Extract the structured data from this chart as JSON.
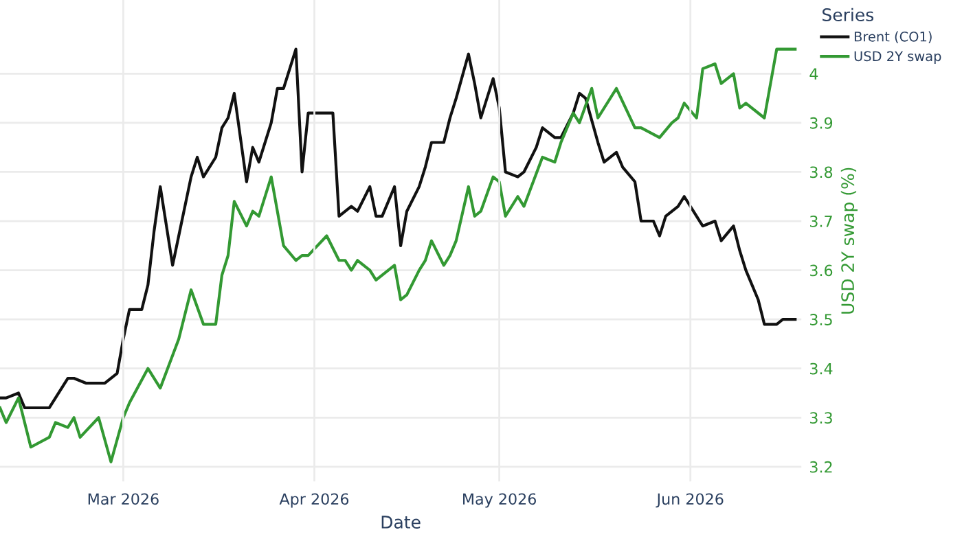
{
  "chart_data": {
    "type": "line",
    "xlabel": "Date",
    "y2label": "USD 2Y swap (%)",
    "legend_title": "Series",
    "legend": "top right",
    "grid": true,
    "line_style": "solid",
    "marker": "none",
    "xlim": [
      "2026-02-09",
      "2026-06-19"
    ],
    "xticks": [
      {
        "value": "2026-03-01",
        "label": "Mar 2026"
      },
      {
        "value": "2026-04-01",
        "label": "Apr 2026"
      },
      {
        "value": "2026-05-01",
        "label": "May 2026"
      },
      {
        "value": "2026-06-01",
        "label": "Jun 2026"
      }
    ],
    "y2lim": [
      3.17,
      4.15
    ],
    "y2ticks": [
      3.2,
      3.3,
      3.4,
      3.5,
      3.6,
      3.7,
      3.8,
      3.9,
      4
    ],
    "series": [
      {
        "name": "Brent (CO1)",
        "color": "#111111",
        "axis": "y2",
        "x": [
          "2026-02-09",
          "2026-02-10",
          "2026-02-12",
          "2026-02-13",
          "2026-02-15",
          "2026-02-17",
          "2026-02-19",
          "2026-02-20",
          "2026-02-21",
          "2026-02-23",
          "2026-02-26",
          "2026-02-28",
          "2026-03-01",
          "2026-03-02",
          "2026-03-04",
          "2026-03-05",
          "2026-03-06",
          "2026-03-07",
          "2026-03-09",
          "2026-03-10",
          "2026-03-12",
          "2026-03-13",
          "2026-03-14",
          "2026-03-16",
          "2026-03-17",
          "2026-03-18",
          "2026-03-19",
          "2026-03-21",
          "2026-03-22",
          "2026-03-23",
          "2026-03-25",
          "2026-03-26",
          "2026-03-27",
          "2026-03-29",
          "2026-03-30",
          "2026-03-31",
          "2026-04-01",
          "2026-04-03",
          "2026-04-04",
          "2026-04-05",
          "2026-04-07",
          "2026-04-08",
          "2026-04-10",
          "2026-04-11",
          "2026-04-12",
          "2026-04-14",
          "2026-04-15",
          "2026-04-16",
          "2026-04-18",
          "2026-04-19",
          "2026-04-20",
          "2026-04-22",
          "2026-04-23",
          "2026-04-24",
          "2026-04-26",
          "2026-04-27",
          "2026-04-28",
          "2026-04-30",
          "2026-05-01",
          "2026-05-02",
          "2026-05-04",
          "2026-05-05",
          "2026-05-07",
          "2026-05-08",
          "2026-05-10",
          "2026-05-11",
          "2026-05-13",
          "2026-05-14",
          "2026-05-15",
          "2026-05-17",
          "2026-05-18",
          "2026-05-20",
          "2026-05-21",
          "2026-05-23",
          "2026-05-24",
          "2026-05-26",
          "2026-05-27",
          "2026-05-28",
          "2026-05-30",
          "2026-05-31",
          "2026-06-02",
          "2026-06-03",
          "2026-06-05",
          "2026-06-06",
          "2026-06-08",
          "2026-06-09",
          "2026-06-10",
          "2026-06-12",
          "2026-06-13",
          "2026-06-15",
          "2026-06-16",
          "2026-06-18"
        ],
        "values": [
          3.34,
          3.34,
          3.35,
          3.32,
          3.32,
          3.32,
          3.36,
          3.38,
          3.38,
          3.37,
          3.37,
          3.39,
          3.46,
          3.52,
          3.52,
          3.57,
          3.68,
          3.77,
          3.61,
          3.67,
          3.79,
          3.83,
          3.79,
          3.83,
          3.89,
          3.91,
          3.96,
          3.78,
          3.85,
          3.82,
          3.9,
          3.97,
          3.97,
          4.05,
          3.8,
          3.92,
          3.92,
          3.92,
          3.92,
          3.71,
          3.73,
          3.72,
          3.77,
          3.71,
          3.71,
          3.77,
          3.65,
          3.72,
          3.77,
          3.81,
          3.86,
          3.86,
          3.91,
          3.95,
          4.04,
          3.98,
          3.91,
          3.99,
          3.93,
          3.8,
          3.79,
          3.8,
          3.85,
          3.89,
          3.87,
          3.87,
          3.92,
          3.96,
          3.95,
          3.86,
          3.82,
          3.84,
          3.81,
          3.78,
          3.7,
          3.7,
          3.67,
          3.71,
          3.73,
          3.75,
          3.71,
          3.69,
          3.7,
          3.66,
          3.69,
          3.64,
          3.6,
          3.54,
          3.49,
          3.49,
          3.5,
          3.5
        ]
      },
      {
        "name": "USD 2Y swap",
        "color": "#339933",
        "axis": "y2",
        "x": [
          "2026-02-09",
          "2026-02-10",
          "2026-02-12",
          "2026-02-14",
          "2026-02-17",
          "2026-02-18",
          "2026-02-20",
          "2026-02-21",
          "2026-02-22",
          "2026-02-25",
          "2026-02-27",
          "2026-03-01",
          "2026-03-02",
          "2026-03-05",
          "2026-03-07",
          "2026-03-10",
          "2026-03-12",
          "2026-03-14",
          "2026-03-16",
          "2026-03-17",
          "2026-03-18",
          "2026-03-19",
          "2026-03-21",
          "2026-03-22",
          "2026-03-23",
          "2026-03-25",
          "2026-03-27",
          "2026-03-29",
          "2026-03-30",
          "2026-03-31",
          "2026-04-03",
          "2026-04-05",
          "2026-04-06",
          "2026-04-07",
          "2026-04-08",
          "2026-04-10",
          "2026-04-11",
          "2026-04-14",
          "2026-04-15",
          "2026-04-16",
          "2026-04-18",
          "2026-04-19",
          "2026-04-20",
          "2026-04-22",
          "2026-04-23",
          "2026-04-24",
          "2026-04-26",
          "2026-04-27",
          "2026-04-28",
          "2026-04-30",
          "2026-05-01",
          "2026-05-02",
          "2026-05-04",
          "2026-05-05",
          "2026-05-08",
          "2026-05-10",
          "2026-05-11",
          "2026-05-13",
          "2026-05-14",
          "2026-05-16",
          "2026-05-17",
          "2026-05-20",
          "2026-05-23",
          "2026-05-24",
          "2026-05-27",
          "2026-05-29",
          "2026-05-30",
          "2026-05-31",
          "2026-06-02",
          "2026-06-03",
          "2026-06-05",
          "2026-06-06",
          "2026-06-08",
          "2026-06-09",
          "2026-06-10",
          "2026-06-13",
          "2026-06-15",
          "2026-06-16",
          "2026-06-18"
        ],
        "values": [
          3.32,
          3.29,
          3.34,
          3.24,
          3.26,
          3.29,
          3.28,
          3.3,
          3.26,
          3.3,
          3.21,
          3.3,
          3.33,
          3.4,
          3.36,
          3.46,
          3.56,
          3.49,
          3.49,
          3.59,
          3.63,
          3.74,
          3.69,
          3.72,
          3.71,
          3.79,
          3.65,
          3.62,
          3.63,
          3.63,
          3.67,
          3.62,
          3.62,
          3.6,
          3.62,
          3.6,
          3.58,
          3.61,
          3.54,
          3.55,
          3.6,
          3.62,
          3.66,
          3.61,
          3.63,
          3.66,
          3.77,
          3.71,
          3.72,
          3.79,
          3.78,
          3.71,
          3.75,
          3.73,
          3.83,
          3.82,
          3.86,
          3.92,
          3.9,
          3.97,
          3.91,
          3.97,
          3.89,
          3.89,
          3.87,
          3.9,
          3.91,
          3.94,
          3.91,
          4.01,
          4.02,
          3.98,
          4.0,
          3.93,
          3.94,
          3.91,
          4.05,
          4.05,
          4.05
        ]
      }
    ]
  }
}
